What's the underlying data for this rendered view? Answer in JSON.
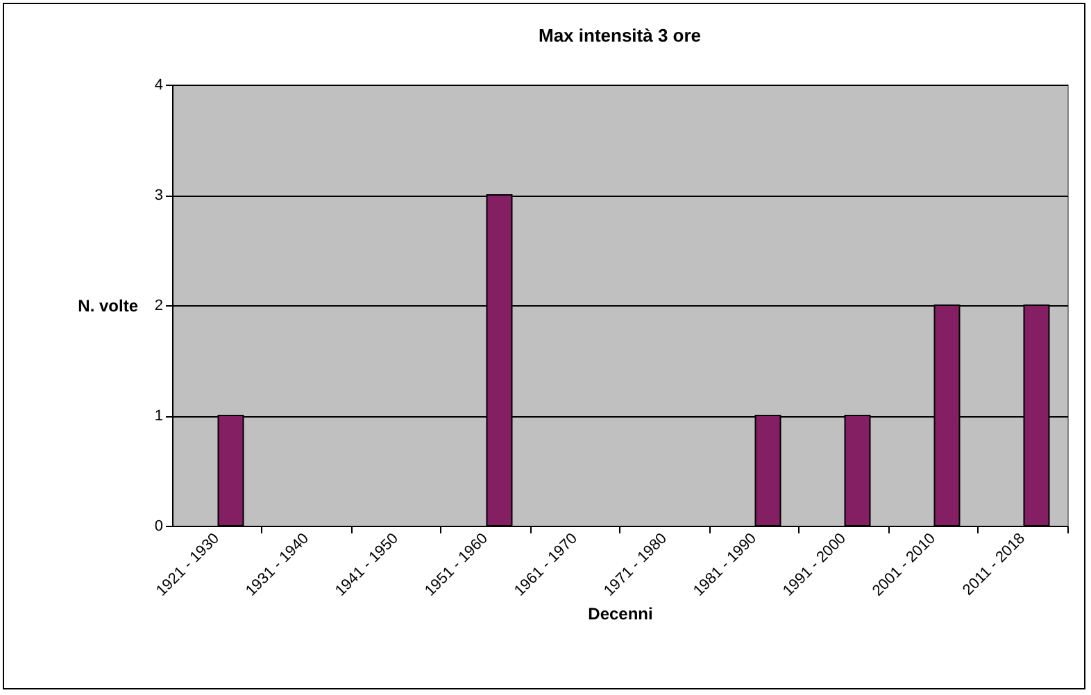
{
  "chart_data": {
    "type": "bar",
    "title": "Max intensità 3 ore",
    "xlabel": "Decenni",
    "ylabel": "N. volte",
    "categories": [
      "1921 - 1930",
      "1931 - 1940",
      "1941 - 1950",
      "1951 - 1960",
      "1961 - 1970",
      "1971 - 1980",
      "1981 - 1990",
      "1991 - 2000",
      "2001 - 2010",
      "2011 - 2018"
    ],
    "values": [
      1,
      0,
      0,
      3,
      0,
      0,
      1,
      1,
      2,
      2
    ],
    "color": "#851f63",
    "ylim": [
      0,
      4
    ],
    "yticks": [
      0,
      1,
      2,
      3,
      4
    ],
    "grid": "y"
  }
}
